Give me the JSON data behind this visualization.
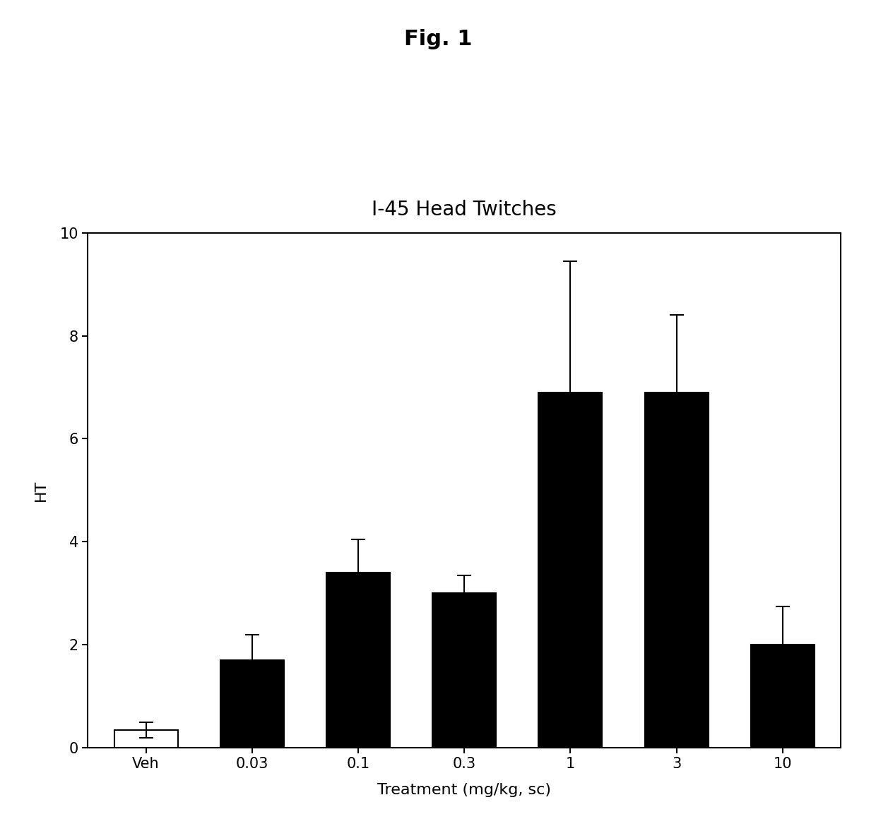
{
  "title": "I-45 Head Twitches",
  "xlabel": "Treatment (mg/kg, sc)",
  "ylabel": "HT",
  "fig_title": "Fig. 1",
  "categories": [
    "Veh",
    "0.03",
    "0.1",
    "0.3",
    "1",
    "3",
    "10"
  ],
  "values": [
    0.35,
    1.7,
    3.4,
    3.0,
    6.9,
    6.9,
    2.0
  ],
  "errors": [
    0.15,
    0.5,
    0.65,
    0.35,
    2.55,
    1.5,
    0.75
  ],
  "bar_colors": [
    "#ffffff",
    "#000000",
    "#000000",
    "#000000",
    "#000000",
    "#000000",
    "#000000"
  ],
  "bar_edgecolors": [
    "#000000",
    "#000000",
    "#000000",
    "#000000",
    "#000000",
    "#000000",
    "#000000"
  ],
  "ylim": [
    0,
    10
  ],
  "yticks": [
    0,
    2,
    4,
    6,
    8,
    10
  ],
  "bar_width": 0.6,
  "title_fontsize": 20,
  "axis_label_fontsize": 16,
  "tick_fontsize": 15,
  "fig_title_fontsize": 22,
  "background_color": "#ffffff",
  "plot_background_color": "#ffffff"
}
